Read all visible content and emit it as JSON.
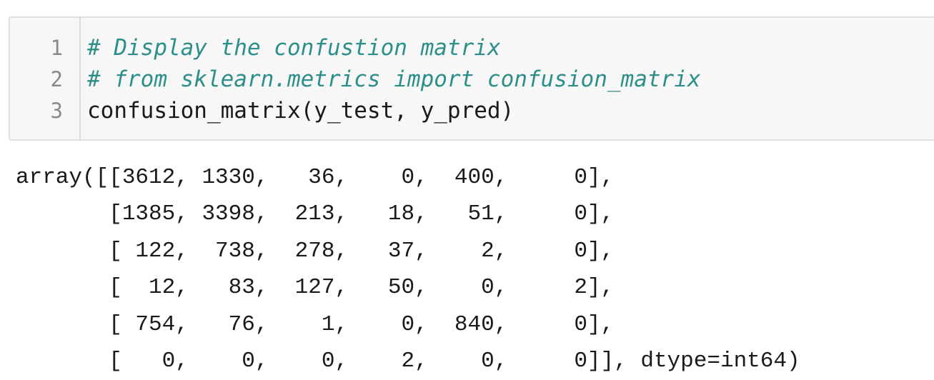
{
  "input_cell": {
    "lines": [
      {
        "number": "1",
        "text": "# Display the confustion matrix",
        "kind": "comment"
      },
      {
        "number": "2",
        "text": "# from sklearn.metrics import confusion_matrix",
        "kind": "comment"
      },
      {
        "number": "3",
        "text": "confusion_matrix(y_test, y_pred)",
        "kind": "code"
      }
    ]
  },
  "output_cell": {
    "text": "array([[3612, 1330,   36,    0,  400,     0],\n       [1385, 3398,  213,   18,   51,     0],\n       [ 122,  738,  278,   37,    2,     0],\n       [  12,   83,  127,   50,    0,     2],\n       [ 754,   76,    1,    0,  840,     0],\n       [   0,    0,    0,    2,    0,     0]], dtype=int64)"
  },
  "colors": {
    "comment": "#2d8f8a",
    "cell_background": "#f7f7f7",
    "line_number": "#8a8a8a"
  }
}
